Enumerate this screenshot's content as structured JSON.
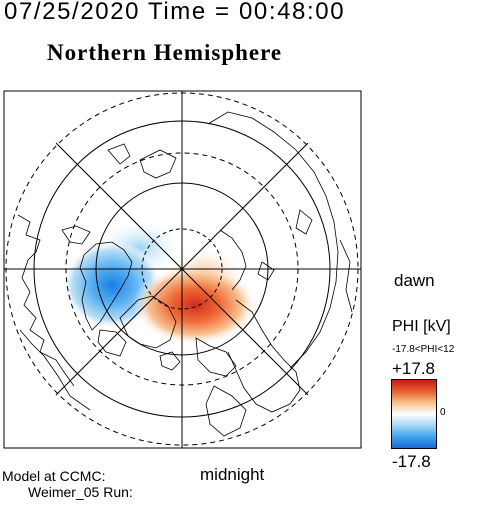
{
  "header": {
    "date_time": "07/25/2020 Time = 00:48:00",
    "hemisphere": "Northern Hemisphere"
  },
  "map": {
    "dawn_label": "dawn",
    "midnight_label": "midnight"
  },
  "colorbar": {
    "title": "PHI [kV]",
    "range_text": "-17.8<PHI<12",
    "max_label": "+17.8",
    "zero_label": "0",
    "min_label": "-17.8",
    "colors": [
      "#c61a1a",
      "#e8612b",
      "#f6c089",
      "#ffffff",
      "#a8d6f2",
      "#41a6ef",
      "#1769d6"
    ]
  },
  "footer": {
    "model_line1": "Model at CCMC:",
    "model_line2": "Weimer_05 Run:"
  }
}
